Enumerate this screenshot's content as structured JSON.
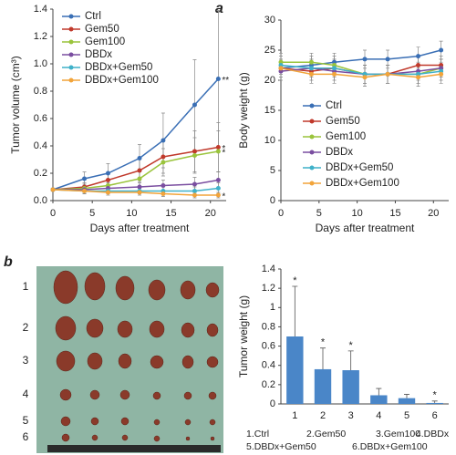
{
  "panel_labels": [
    "a",
    "b"
  ],
  "photo": {
    "row_labels": [
      "1",
      "2",
      "3",
      "4",
      "5",
      "6"
    ]
  },
  "chart_data": [
    {
      "type": "line",
      "xlabel": "Days after treatment",
      "ylabel": "Tumor volume (cm³)",
      "x": [
        0,
        4,
        7,
        11,
        14,
        18,
        21
      ],
      "xlim": [
        0,
        22
      ],
      "xticks": [
        0,
        5,
        10,
        15,
        20
      ],
      "ylim": [
        0,
        1.4
      ],
      "yticks": [
        {
          "value": 0,
          "label": "0.0"
        },
        0.2,
        0.4,
        0.6,
        0.8,
        {
          "value": 1,
          "label": "1.0"
        },
        1.2,
        1.4
      ],
      "legend": "upper left",
      "series": [
        {
          "name": "Ctrl",
          "color": "#3a6fb5",
          "values": [
            0.08,
            0.16,
            0.2,
            0.31,
            0.44,
            0.7,
            0.89
          ],
          "errors": [
            0.01,
            0.05,
            0.07,
            0.1,
            0.2,
            0.33,
            0.5
          ],
          "end_label": "**"
        },
        {
          "name": "Gem50",
          "color": "#c0392b",
          "values": [
            0.08,
            0.1,
            0.15,
            0.22,
            0.32,
            0.36,
            0.39
          ],
          "errors": [
            0.01,
            0.03,
            0.05,
            0.08,
            0.12,
            0.15,
            0.18
          ],
          "end_label": "*"
        },
        {
          "name": "Gem100",
          "color": "#9ac43c",
          "values": [
            0.08,
            0.09,
            0.11,
            0.16,
            0.28,
            0.33,
            0.36
          ],
          "errors": [
            0.01,
            0.03,
            0.04,
            0.07,
            0.1,
            0.13,
            0.15
          ],
          "end_label": "*"
        },
        {
          "name": "DBDx",
          "color": "#7a4ea0",
          "values": [
            0.08,
            0.08,
            0.09,
            0.1,
            0.11,
            0.12,
            0.15
          ],
          "errors": [
            0.01,
            0.02,
            0.02,
            0.03,
            0.04,
            0.05,
            0.06
          ]
        },
        {
          "name": "DBDx+Gem50",
          "color": "#3fb1c9",
          "values": [
            0.08,
            0.07,
            0.07,
            0.07,
            0.07,
            0.07,
            0.09
          ],
          "errors": [
            0.01,
            0.02,
            0.02,
            0.02,
            0.03,
            0.03,
            0.04
          ]
        },
        {
          "name": "DBDx+Gem100",
          "color": "#f2a43a",
          "values": [
            0.08,
            0.07,
            0.06,
            0.06,
            0.05,
            0.04,
            0.04
          ],
          "errors": [
            0.01,
            0.02,
            0.02,
            0.02,
            0.02,
            0.02,
            0.02
          ],
          "end_label": "*"
        }
      ]
    },
    {
      "type": "line",
      "xlabel": "Days after treatment",
      "ylabel": "Body weight (g)",
      "x": [
        0,
        4,
        7,
        11,
        14,
        18,
        21
      ],
      "xlim": [
        0,
        22
      ],
      "xticks": [
        0,
        5,
        10,
        15,
        20
      ],
      "ylim": [
        0,
        30
      ],
      "yticks": [
        0,
        5,
        10,
        15,
        20,
        25,
        30
      ],
      "legend": "lower left",
      "series": [
        {
          "name": "Ctrl",
          "color": "#3a6fb5",
          "values": [
            22,
            22.5,
            23,
            23.5,
            23.5,
            24,
            25
          ],
          "errors": [
            1.5,
            1.5,
            1.5,
            1.5,
            1.5,
            1.5,
            1.5
          ]
        },
        {
          "name": "Gem50",
          "color": "#c0392b",
          "values": [
            22,
            21.5,
            22,
            21,
            21,
            22.5,
            22.5
          ],
          "errors": [
            1.5,
            1.5,
            1.5,
            1.5,
            1.5,
            1.5,
            1.5
          ]
        },
        {
          "name": "Gem100",
          "color": "#9ac43c",
          "values": [
            23,
            23,
            22.5,
            21,
            21,
            21,
            22
          ],
          "errors": [
            1.5,
            1.5,
            1.5,
            1.5,
            1.5,
            1.5,
            1.5
          ]
        },
        {
          "name": "DBDx",
          "color": "#7a4ea0",
          "values": [
            21.5,
            22,
            21.5,
            21,
            21,
            21.5,
            22
          ],
          "errors": [
            1.5,
            1.5,
            1.5,
            1.5,
            1.5,
            1.5,
            1.5
          ]
        },
        {
          "name": "DBDx+Gem50",
          "color": "#3fb1c9",
          "values": [
            22.5,
            22,
            22,
            21,
            21,
            21,
            21.5
          ],
          "errors": [
            1.5,
            1.5,
            1.5,
            1.5,
            1.5,
            1.5,
            1.5
          ]
        },
        {
          "name": "DBDx+Gem100",
          "color": "#f2a43a",
          "values": [
            22,
            21,
            21,
            20.5,
            21,
            20.5,
            21
          ],
          "errors": [
            1.5,
            1.5,
            1.5,
            1.5,
            1.5,
            1.5,
            1.5
          ]
        }
      ]
    },
    {
      "type": "bar",
      "ylabel": "Tumor weight (g)",
      "categories": [
        "1",
        "2",
        "3",
        "4",
        "5",
        "6"
      ],
      "values": [
        0.7,
        0.36,
        0.35,
        0.09,
        0.06,
        0.01
      ],
      "errors": [
        0.52,
        0.22,
        0.2,
        0.07,
        0.04,
        0.02
      ],
      "annotations": [
        "*",
        "*",
        "*",
        null,
        null,
        "*"
      ],
      "color": "#4a86c8",
      "ylim": [
        0,
        1.4
      ],
      "yticks": [
        0,
        0.2,
        0.4,
        0.6,
        0.8,
        1,
        1.2,
        1.4
      ],
      "caption": [
        "1.Ctrl",
        "2.Gem50",
        "3.Gem100",
        "4.DBDx",
        "5.DBDx+Gem50",
        "6.DBDx+Gem100"
      ]
    }
  ]
}
